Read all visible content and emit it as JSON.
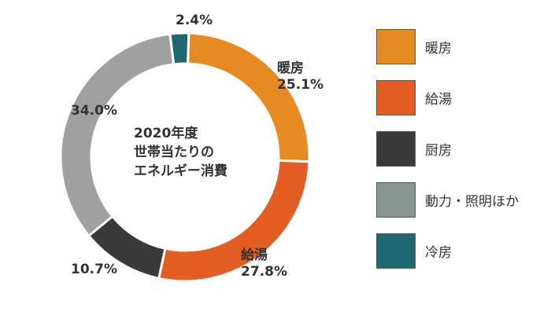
{
  "chart_data": {
    "type": "pie",
    "style": "donut",
    "center_text": [
      "2020年度",
      "世帯当たりの",
      "エネルギー消費"
    ],
    "slices": [
      {
        "name": "暖房",
        "value": 25.1,
        "label": "25.1%",
        "color": "#E68B22"
      },
      {
        "name": "給湯",
        "value": 27.8,
        "label": "27.8%",
        "color": "#E35E24"
      },
      {
        "name": "厨房",
        "value": 10.7,
        "label": "10.7%",
        "color": "#393939"
      },
      {
        "name": "動力・照明ほか",
        "value": 34.0,
        "label": "34.0%",
        "color": "#A0A0A0"
      },
      {
        "name": "冷房",
        "value": 2.4,
        "label": "2.4%",
        "color": "#1F6872"
      }
    ],
    "legend_position": "right"
  },
  "legend": [
    {
      "label": "暖房",
      "color": "#E68B22"
    },
    {
      "label": "給湯",
      "color": "#E35E24"
    },
    {
      "label": "厨房",
      "color": "#393939"
    },
    {
      "label": "動力・照明ほか",
      "color": "#8A9591"
    },
    {
      "label": "冷房",
      "color": "#1F6872"
    }
  ]
}
